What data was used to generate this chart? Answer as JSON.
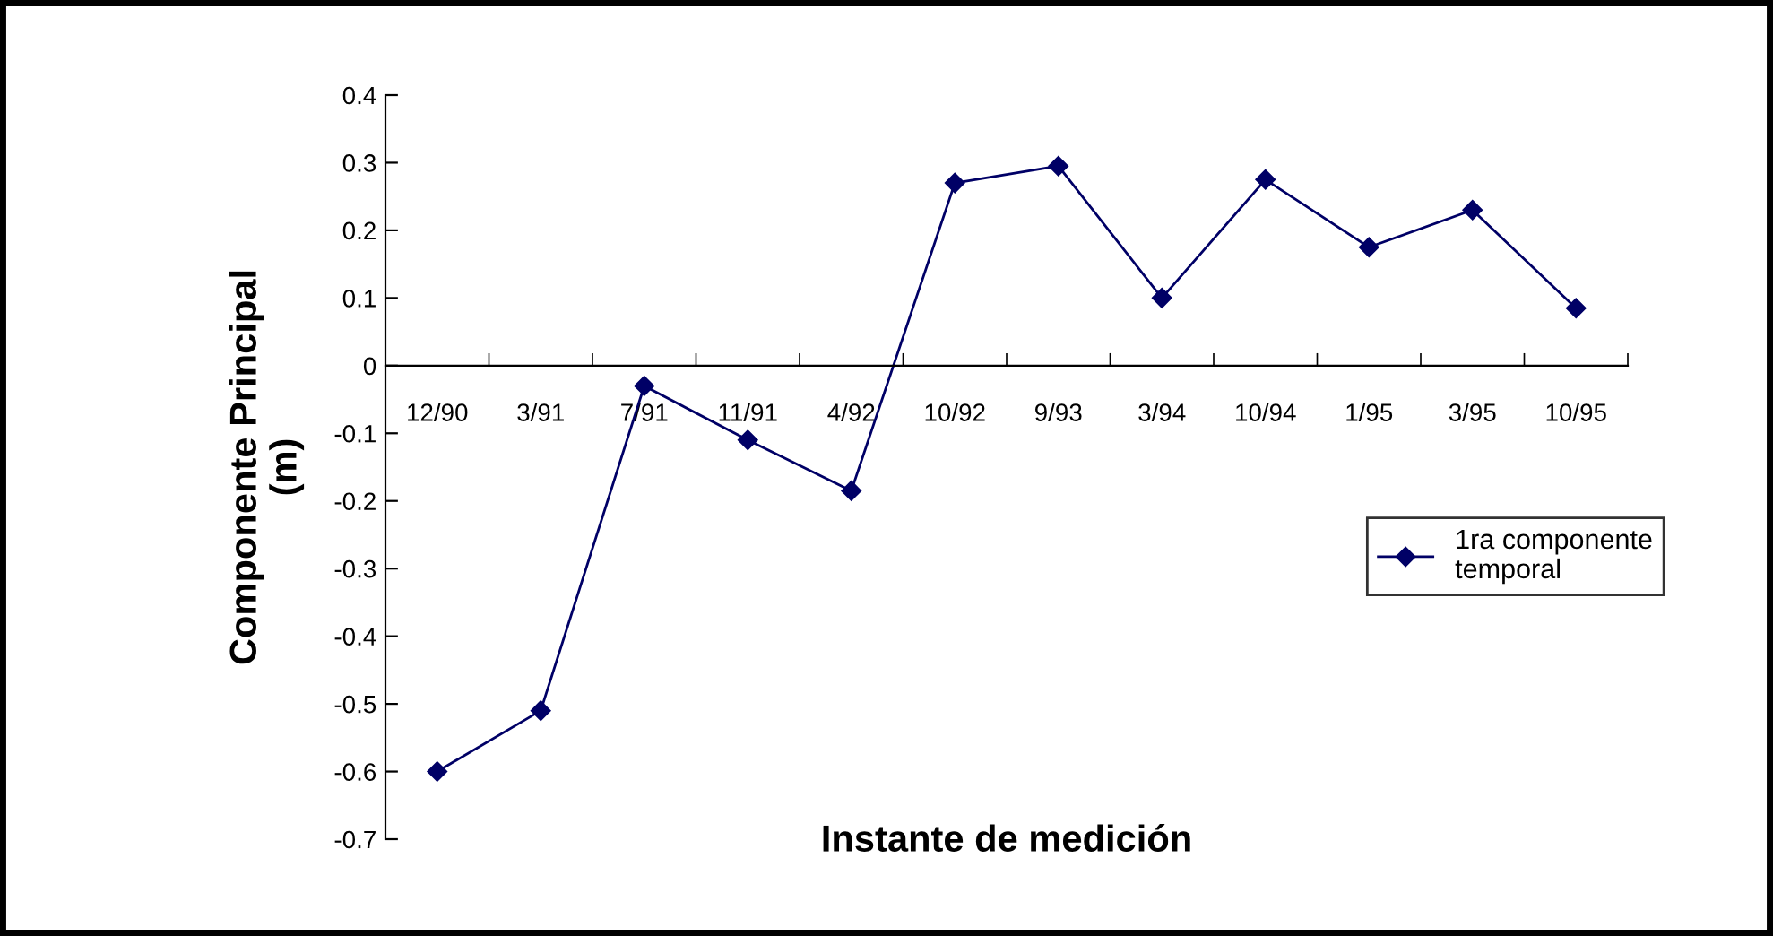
{
  "chart_data": {
    "type": "line",
    "xlabel": "Instante de medición",
    "ylabel": "Componente Principal\n(m)",
    "categories": [
      "12/90",
      "3/91",
      "7/91",
      "11/91",
      "4/92",
      "10/92",
      "9/93",
      "3/94",
      "10/94",
      "1/95",
      "3/95",
      "10/95"
    ],
    "series": [
      {
        "name": "1ra componente\ntemporal",
        "color": "#000066",
        "values": [
          -0.6,
          -0.51,
          -0.03,
          -0.11,
          -0.185,
          0.27,
          0.295,
          0.1,
          0.275,
          0.175,
          0.23,
          0.085
        ]
      }
    ],
    "ylim": [
      -0.7,
      0.4
    ],
    "yticks": [
      -0.7,
      -0.6,
      -0.5,
      -0.4,
      -0.3,
      -0.2,
      -0.1,
      0,
      0.1,
      0.2,
      0.3,
      0.4
    ],
    "marker": "diamond",
    "line_style": "solid",
    "legend": "right",
    "grid": false
  }
}
